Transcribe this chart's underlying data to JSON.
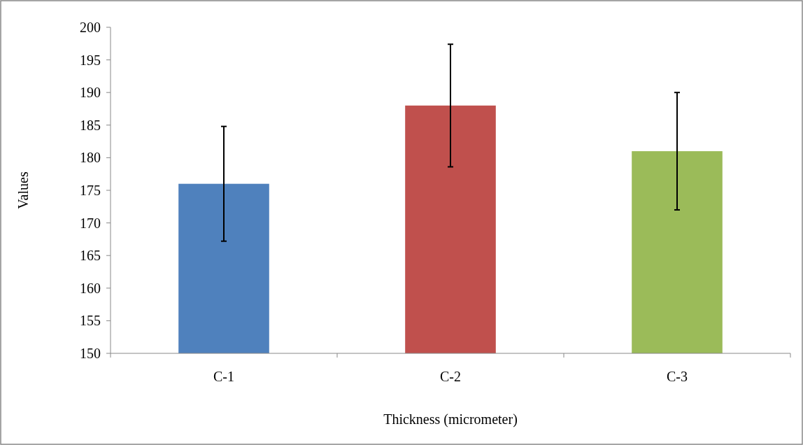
{
  "chart_data": {
    "type": "bar",
    "xlabel": "Thickness (micrometer)",
    "ylabel": "Values",
    "categories": [
      "C-1",
      "C-2",
      "C-3"
    ],
    "values": [
      176,
      188,
      181
    ],
    "colors": [
      "#4f81bd",
      "#c0504d",
      "#9bbb59"
    ],
    "errors": [
      8.8,
      9.4,
      9.0
    ],
    "ylim": [
      150,
      200
    ],
    "yticks": [
      150,
      155,
      160,
      165,
      170,
      175,
      180,
      185,
      190,
      195,
      200
    ],
    "grid": false
  }
}
